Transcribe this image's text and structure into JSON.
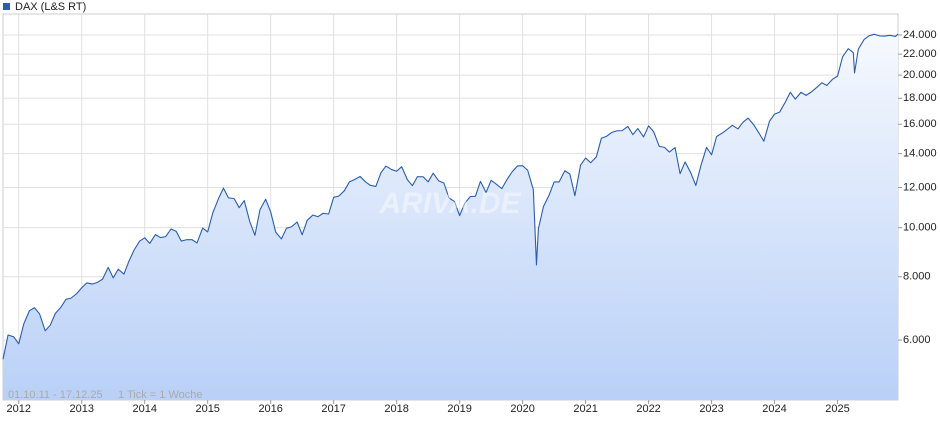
{
  "chart_data": {
    "type": "line",
    "watermark": "ARIVA.DE",
    "footnote": [
      "01.10.11 - 17.12.25",
      "1 Tick = 1 Woche"
    ],
    "yscale": "log",
    "grid": true,
    "legend": "top-left",
    "xlim": [
      2011.75,
      2025.96
    ],
    "xticks": [
      2012,
      2013,
      2014,
      2015,
      2016,
      2017,
      2018,
      2019,
      2020,
      2021,
      2022,
      2023,
      2024,
      2025
    ],
    "ylim": [
      4570,
      26400
    ],
    "yticks": [
      {
        "value": 6000,
        "label": "6.000"
      },
      {
        "value": 8000,
        "label": "8.000"
      },
      {
        "value": 10000,
        "label": "10.000"
      },
      {
        "value": 12000,
        "label": "12.000"
      },
      {
        "value": 14000,
        "label": "14.000"
      },
      {
        "value": 16000,
        "label": "16.000"
      },
      {
        "value": 18000,
        "label": "18.000"
      },
      {
        "value": 20000,
        "label": "20.000"
      },
      {
        "value": 22000,
        "label": "22.000"
      },
      {
        "value": 24000,
        "label": "24.000"
      }
    ],
    "x": [
      2011.75,
      2011.83,
      2011.92,
      2012.0,
      2012.08,
      2012.17,
      2012.25,
      2012.33,
      2012.42,
      2012.5,
      2012.58,
      2012.67,
      2012.75,
      2012.83,
      2012.92,
      2013.0,
      2013.08,
      2013.17,
      2013.25,
      2013.33,
      2013.42,
      2013.5,
      2013.58,
      2013.67,
      2013.75,
      2013.83,
      2013.92,
      2014.0,
      2014.08,
      2014.17,
      2014.25,
      2014.33,
      2014.42,
      2014.5,
      2014.58,
      2014.67,
      2014.75,
      2014.83,
      2014.92,
      2015.0,
      2015.08,
      2015.17,
      2015.25,
      2015.33,
      2015.42,
      2015.5,
      2015.58,
      2015.67,
      2015.75,
      2015.83,
      2015.92,
      2016.0,
      2016.08,
      2016.17,
      2016.25,
      2016.33,
      2016.42,
      2016.5,
      2016.58,
      2016.67,
      2016.75,
      2016.83,
      2016.92,
      2017.0,
      2017.08,
      2017.17,
      2017.25,
      2017.33,
      2017.42,
      2017.5,
      2017.58,
      2017.67,
      2017.75,
      2017.83,
      2017.92,
      2018.0,
      2018.08,
      2018.17,
      2018.25,
      2018.33,
      2018.42,
      2018.5,
      2018.58,
      2018.67,
      2018.75,
      2018.83,
      2018.92,
      2019.0,
      2019.08,
      2019.17,
      2019.25,
      2019.33,
      2019.42,
      2019.5,
      2019.58,
      2019.67,
      2019.75,
      2019.83,
      2019.92,
      2020.0,
      2020.08,
      2020.17,
      2020.22,
      2020.25,
      2020.33,
      2020.42,
      2020.5,
      2020.58,
      2020.67,
      2020.75,
      2020.83,
      2020.92,
      2021.0,
      2021.08,
      2021.17,
      2021.25,
      2021.33,
      2021.42,
      2021.5,
      2021.58,
      2021.67,
      2021.75,
      2021.83,
      2021.92,
      2022.0,
      2022.08,
      2022.17,
      2022.25,
      2022.33,
      2022.42,
      2022.5,
      2022.58,
      2022.67,
      2022.75,
      2022.83,
      2022.92,
      2023.0,
      2023.08,
      2023.17,
      2023.25,
      2023.33,
      2023.42,
      2023.5,
      2023.58,
      2023.67,
      2023.75,
      2023.83,
      2023.92,
      2024.0,
      2024.08,
      2024.17,
      2024.25,
      2024.33,
      2024.42,
      2024.5,
      2024.58,
      2024.67,
      2024.75,
      2024.83,
      2024.92,
      2025.0,
      2025.08,
      2025.17,
      2025.25,
      2025.27,
      2025.33,
      2025.42,
      2025.5,
      2025.58,
      2025.67,
      2025.75,
      2025.83,
      2025.92,
      2025.96
    ],
    "series": [
      {
        "name": "DAX (L&S RT)",
        "color": "#2a5db0",
        "values": [
          5500,
          6140,
          6090,
          5900,
          6460,
          6860,
          6950,
          6760,
          6260,
          6420,
          6770,
          6970,
          7220,
          7260,
          7410,
          7610,
          7780,
          7740,
          7800,
          7910,
          8350,
          7960,
          8280,
          8100,
          8590,
          9030,
          9410,
          9550,
          9310,
          9690,
          9560,
          9600,
          9940,
          9830,
          9410,
          9470,
          9470,
          9330,
          9980,
          9810,
          10690,
          11400,
          11970,
          11450,
          11410,
          10950,
          11310,
          10260,
          9660,
          10850,
          11380,
          10740,
          9800,
          9500,
          9970,
          10040,
          10260,
          9680,
          10340,
          10590,
          10510,
          10670,
          10640,
          11480,
          11540,
          11830,
          12310,
          12440,
          12620,
          12330,
          12120,
          12060,
          12830,
          13230,
          13020,
          12920,
          13190,
          12440,
          12100,
          12610,
          12600,
          12310,
          12810,
          12360,
          12250,
          11450,
          11260,
          10560,
          11170,
          11520,
          11530,
          12340,
          11730,
          12400,
          12190,
          11940,
          12430,
          12870,
          13240,
          13250,
          12980,
          11890,
          8440,
          9940,
          11000,
          11590,
          12310,
          12310,
          12950,
          12760,
          11560,
          13290,
          13720,
          13430,
          13790,
          15010,
          15140,
          15420,
          15530,
          15540,
          15840,
          15260,
          15690,
          15100,
          15880,
          15470,
          14460,
          14410,
          14100,
          14390,
          12780,
          13480,
          12830,
          12110,
          13250,
          14400,
          13920,
          15130,
          15370,
          15630,
          15920,
          15660,
          16150,
          16450,
          15950,
          15390,
          14810,
          16220,
          16750,
          16900,
          17680,
          18490,
          17930,
          18500,
          18240,
          18510,
          18910,
          19320,
          19080,
          19630,
          19910,
          21730,
          22550,
          22160,
          20200,
          22500,
          23500,
          23910,
          24070,
          23900,
          23880,
          23960,
          23840,
          24100
        ]
      }
    ]
  }
}
